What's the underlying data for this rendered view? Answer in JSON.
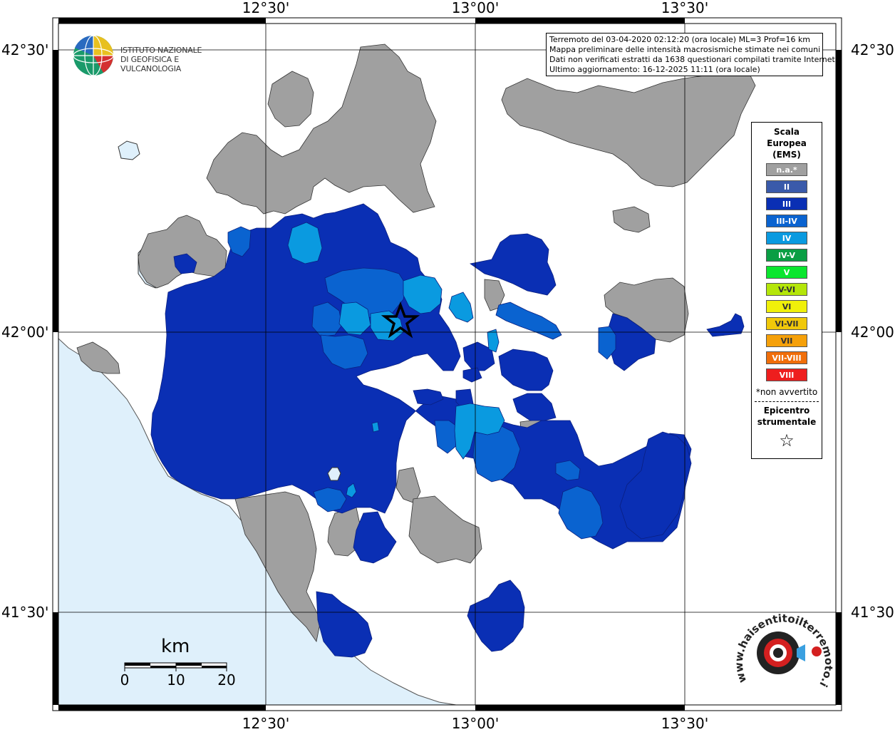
{
  "map": {
    "lon_labels": [
      "12°30'",
      "13°00'",
      "13°30'"
    ],
    "lat_labels": [
      "42°30'",
      "42°00'",
      "41°30'"
    ]
  },
  "header": {
    "logo_line1": "ISTITUTO NAZIONALE",
    "logo_line2": "DI GEOFISICA E VULCANOLOGIA"
  },
  "infobox": {
    "line1": "Terremoto del 03-04-2020 02:12:20 (ora locale) ML=3 Prof=16 km",
    "line2": "Mappa preliminare delle intensità macrosismiche stimate nei comuni",
    "line3": "Dati non verificati estratti da 1638 questionari compilati tramite Internet.",
    "line4": "Ultimo aggiornamento: 16-12-2025 11:11 (ora locale)"
  },
  "legend": {
    "title1": "Scala",
    "title2": "Europea",
    "title3": "(EMS)",
    "classes": [
      {
        "label": "n.a.*",
        "color": "#a0a0a0"
      },
      {
        "label": "II",
        "color": "#3a5aaa"
      },
      {
        "label": "III",
        "color": "#0a2fb4"
      },
      {
        "label": "III-IV",
        "color": "#0a63d0"
      },
      {
        "label": "IV",
        "color": "#0a9ae0"
      },
      {
        "label": "IV-V",
        "color": "#0a9e44"
      },
      {
        "label": "V",
        "color": "#0ae62e"
      },
      {
        "label": "V-VI",
        "color": "#b4e60a"
      },
      {
        "label": "VI",
        "color": "#f0f00a"
      },
      {
        "label": "VI-VII",
        "color": "#f0c80a"
      },
      {
        "label": "VII",
        "color": "#f5a00a"
      },
      {
        "label": "VII-VIII",
        "color": "#f06e0a"
      },
      {
        "label": "VIII",
        "color": "#ee1e1e"
      }
    ],
    "note": "*non avvertito",
    "epicenter1": "Epicentro",
    "epicenter2": "strumentale",
    "star": "☆"
  },
  "scalebar": {
    "unit": "km",
    "ticks": [
      "0",
      "10",
      "20"
    ]
  },
  "colors": {
    "sea": "#dff0fb",
    "land": "#ffffff",
    "na": "#a0a0a0",
    "III": "#0a2fb4",
    "III-IV": "#0a63d0",
    "IV": "#0a9ae0"
  },
  "footer_logo": {
    "text": "www.haisentitoilterremoto.it"
  }
}
